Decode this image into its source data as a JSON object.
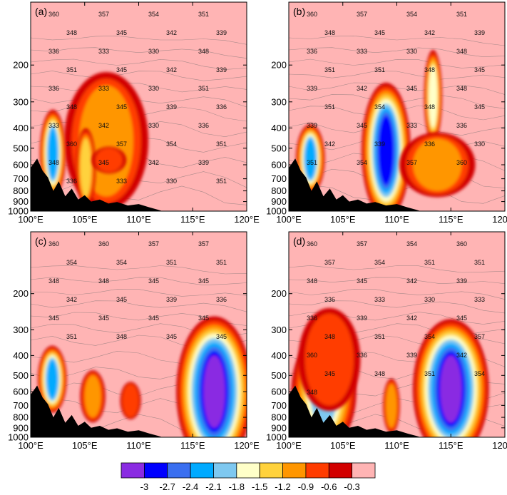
{
  "chart_data": {
    "type": "contour",
    "x_axis": {
      "ticks": [
        "100°E",
        "105°E",
        "110°E",
        "115°E",
        "120°E"
      ],
      "range": [
        100,
        120
      ]
    },
    "y_axis": {
      "ticks": [
        "200",
        "300",
        "400",
        "500",
        "600",
        "700",
        "800",
        "900",
        "1000"
      ],
      "range": [
        1000,
        100
      ],
      "scale": "log-pressure"
    },
    "colorbar": {
      "labels": [
        "-3",
        "-2.7",
        "-2.4",
        "-2.1",
        "-1.8",
        "-1.5",
        "-1.2",
        "-0.9",
        "-0.6",
        "-0.3"
      ],
      "colors": [
        "#8a2be2",
        "#0000ff",
        "#3a6ff0",
        "#00aaff",
        "#7ec8f0",
        "#ffffc8",
        "#ffd23c",
        "#ff9600",
        "#ff3c00",
        "#d20000",
        "#ffb4b4"
      ]
    },
    "background_color": "#ffb4b4",
    "terrain_color": "#000000",
    "panels": [
      {
        "label": "(a)",
        "contour_labels": [
          "360",
          "357",
          "354",
          "351",
          "348",
          "345",
          "342",
          "339",
          "336",
          "333",
          "330",
          "348",
          "351",
          "345",
          "342",
          "339",
          "336",
          "333",
          "330",
          "351",
          "348",
          "345",
          "339",
          "336",
          "333",
          "342",
          "330",
          "336",
          "360",
          "357",
          "354",
          "351",
          "348",
          "345",
          "342",
          "339",
          "336",
          "333",
          "330",
          "351"
        ],
        "shading": [
          {
            "min": -0.9,
            "lon": [
              104.5,
              109.5
            ],
            "p": [
              250,
              850
            ]
          },
          {
            "min": -2.1,
            "lon": [
              101.6,
              102.5
            ],
            "p": [
              400,
              700
            ]
          },
          {
            "min": -1.2,
            "lon": [
              104.6,
              105.6
            ],
            "p": [
              450,
              850
            ]
          },
          {
            "min": -0.6,
            "lon": [
              106,
              108.5
            ],
            "p": [
              500,
              650
            ]
          }
        ]
      },
      {
        "label": "(b)",
        "contour_labels": [
          "360",
          "357",
          "354",
          "351",
          "348",
          "345",
          "342",
          "339",
          "336",
          "333",
          "330",
          "348",
          "351",
          "351",
          "348",
          "345",
          "339",
          "342",
          "345",
          "348",
          "351",
          "354",
          "348",
          "345",
          "339",
          "345",
          "333",
          "336",
          "342",
          "339",
          "336",
          "330",
          "351",
          "354",
          "357",
          "360"
        ],
        "shading": [
          {
            "min": -2.7,
            "lon": [
              108.3,
              109.7
            ],
            "p": [
              350,
              750
            ]
          },
          {
            "min": -2.1,
            "lon": [
              101.5,
              102.5
            ],
            "p": [
              450,
              700
            ]
          },
          {
            "min": -1.5,
            "lon": [
              113,
              113.7
            ],
            "p": [
              200,
              400
            ]
          },
          {
            "min": -0.9,
            "lon": [
              111.5,
              116
            ],
            "p": [
              450,
              800
            ]
          }
        ]
      },
      {
        "label": "(c)",
        "contour_labels": [
          "360",
          "360",
          "357",
          "357",
          "354",
          "354",
          "351",
          "351",
          "348",
          "348",
          "345",
          "345",
          "342",
          "345",
          "339",
          "336",
          "345",
          "345",
          "345",
          "345",
          "351",
          "348",
          "345",
          "345"
        ],
        "shading": [
          {
            "min": -3,
            "lon": [
              116,
              118
            ],
            "p": [
              400,
              900
            ]
          },
          {
            "min": -2.1,
            "lon": [
              101.5,
              102.5
            ],
            "p": [
              420,
              650
            ]
          },
          {
            "min": -0.9,
            "lon": [
              105,
              106.5
            ],
            "p": [
              500,
              800
            ]
          },
          {
            "min": -0.6,
            "lon": [
              108.5,
              110
            ],
            "p": [
              550,
              800
            ]
          }
        ]
      },
      {
        "label": "(d)",
        "contour_labels": [
          "360",
          "357",
          "354",
          "360",
          "357",
          "354",
          "351",
          "351",
          "348",
          "345",
          "342",
          "339",
          "336",
          "333",
          "330",
          "333",
          "336",
          "339",
          "342",
          "345",
          "348",
          "351",
          "354",
          "357",
          "360",
          "336",
          "339",
          "342",
          "345",
          "348",
          "351",
          "354",
          "348"
        ],
        "shading": [
          {
            "min": -3,
            "lon": [
              114,
              116
            ],
            "p": [
              400,
              850
            ]
          },
          {
            "min": -1.8,
            "lon": [
              102,
              104.5
            ],
            "p": [
              400,
              900
            ]
          },
          {
            "min": -0.9,
            "lon": [
              109,
              110
            ],
            "p": [
              550,
              900
            ]
          },
          {
            "min": -0.6,
            "lon": [
              101.5,
              106
            ],
            "p": [
              250,
              700
            ]
          }
        ]
      }
    ]
  }
}
